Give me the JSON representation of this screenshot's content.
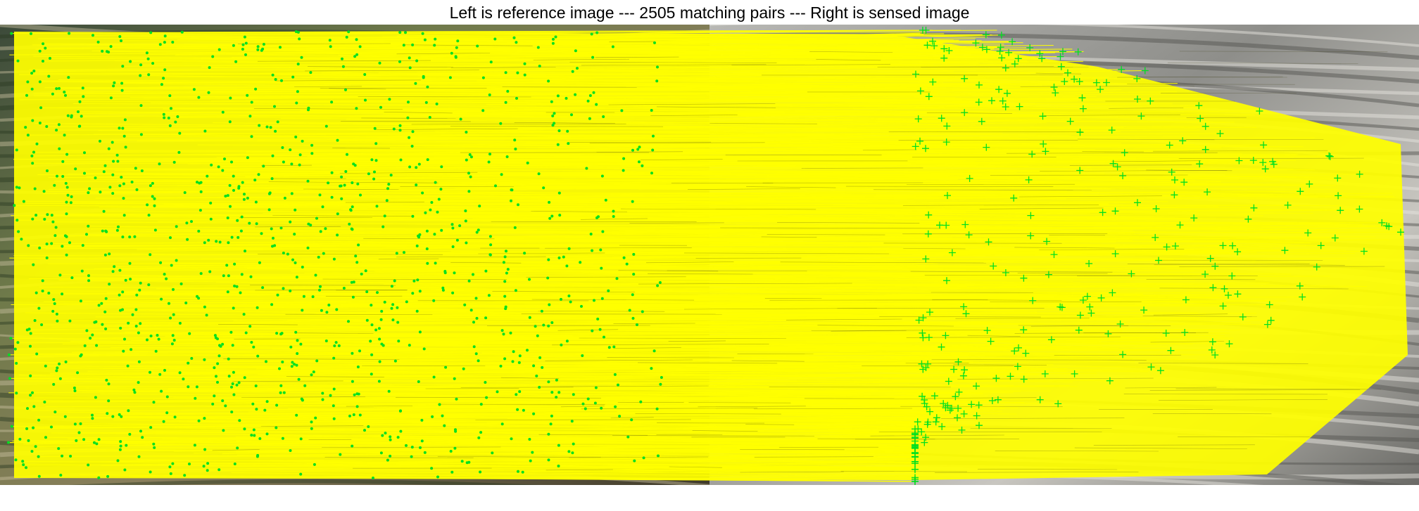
{
  "figure": {
    "title": "Left is reference image --- 2505 matching pairs --- Right is sensed image"
  },
  "matches": {
    "count": 2505,
    "line_color": "#ffff00",
    "reference_marker": "dot",
    "sensed_marker": "plus",
    "marker_color": "#00e020"
  },
  "images": {
    "reference": {
      "name": "reference-image",
      "scene": "rice terraces, vivid colour"
    },
    "sensed": {
      "name": "sensed-image",
      "scene": "rice terraces, desaturated"
    }
  }
}
